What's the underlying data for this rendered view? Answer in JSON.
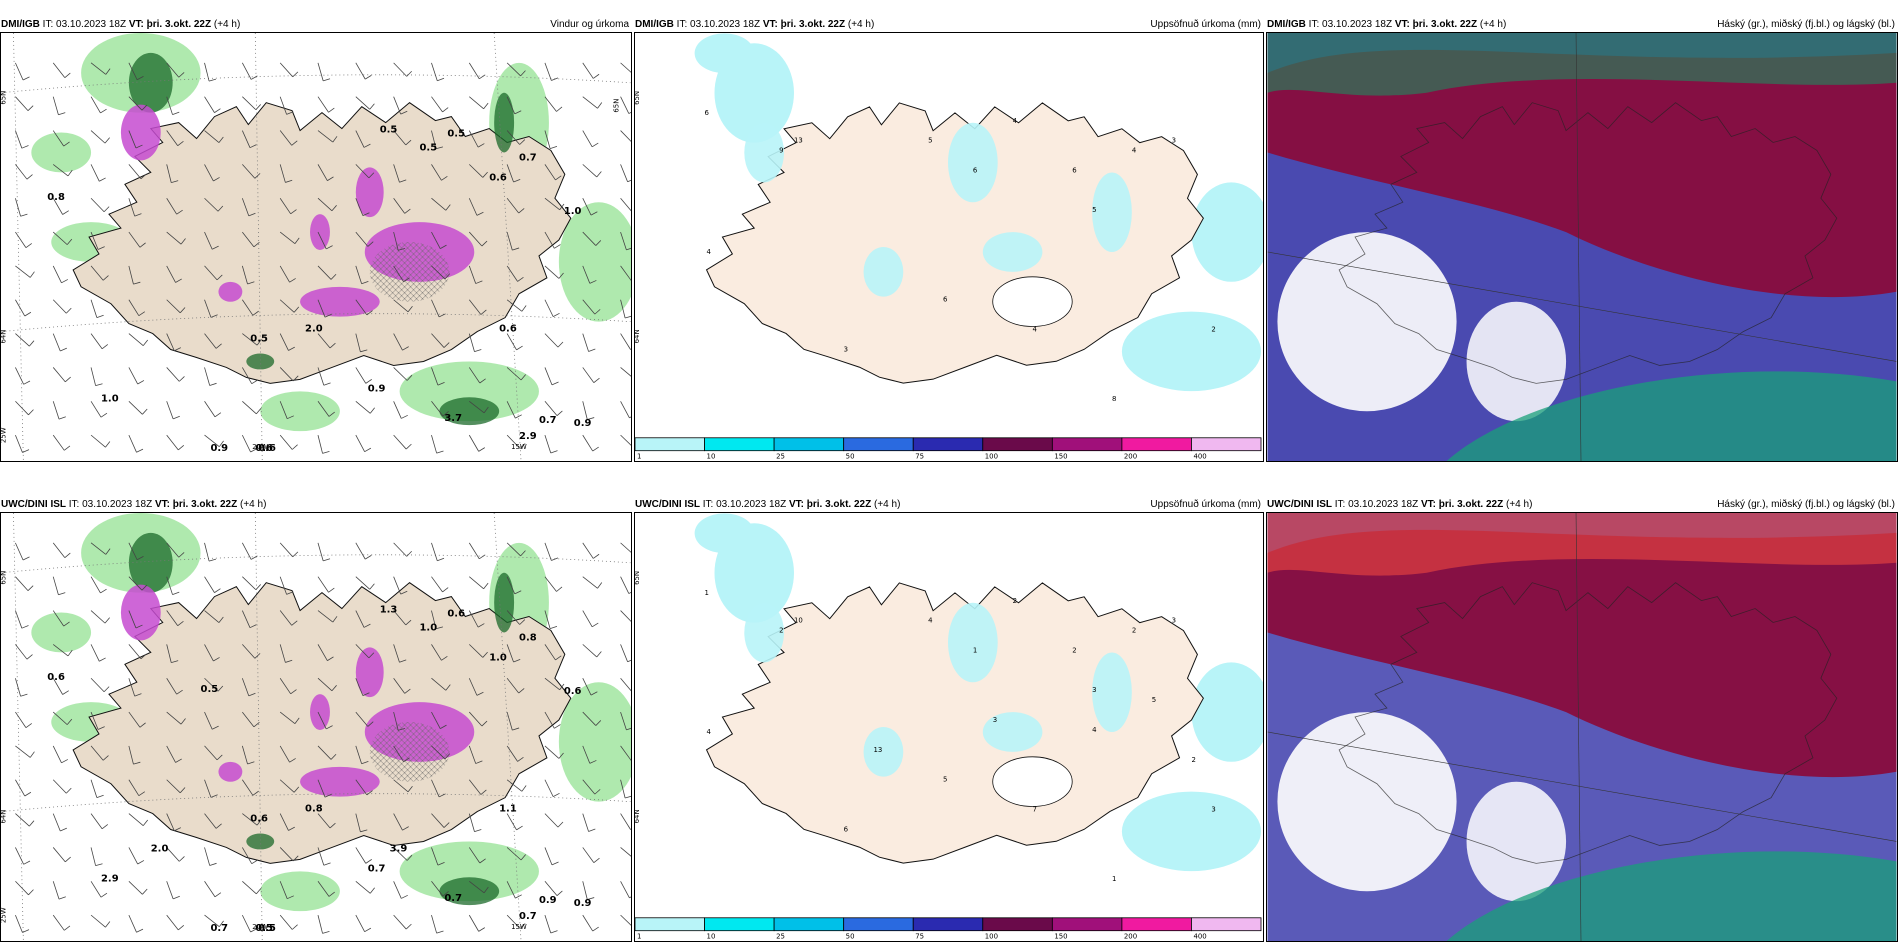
{
  "panels": {
    "dmi_wind": {
      "model": "DMI/IGB",
      "it_label": "IT:",
      "it_value": "03.10.2023 18Z",
      "vt_label": "VT:",
      "vt_value": "þri. 3.okt. 22Z",
      "lead": "(+4 h)",
      "title": "Vindur og úrkoma",
      "grid_labels": [
        "65N",
        "64N",
        "25W",
        "20W",
        "15W",
        "65N"
      ],
      "values": [
        "0.8",
        "0.6",
        "0.5",
        "0.7",
        "0.6",
        "0.5",
        "1.0",
        "0.9",
        "0.7",
        "0.5",
        "0.9",
        "3.7",
        "2.9",
        "0.6",
        "0.5",
        "2.0",
        "0.6",
        "0.9",
        "1.0"
      ]
    },
    "dmi_acc": {
      "model": "DMI/IGB",
      "it_label": "IT:",
      "it_value": "03.10.2023 18Z",
      "vt_label": "VT:",
      "vt_value": "þri. 3.okt. 22Z",
      "lead": "(+4 h)",
      "title": "Uppsöfnuð úrkoma (mm)",
      "grid_labels": [
        "65N",
        "64N"
      ],
      "values": [
        "6",
        "13",
        "5",
        "4",
        "6",
        "6",
        "5",
        "6",
        "4",
        "3",
        "4",
        "3",
        "4",
        "8",
        "2",
        "9"
      ]
    },
    "dmi_cloud": {
      "model": "DMI/IGB",
      "it_label": "IT:",
      "it_value": "03.10.2023 18Z",
      "vt_label": "VT:",
      "vt_value": "þri. 3.okt. 22Z",
      "lead": "(+4 h)",
      "title": "Háský (gr.), miðský (fj.bl.) og lágský (bl.)"
    },
    "uwc_wind": {
      "model": "UWC/DINI ISL",
      "it_label": "IT:",
      "it_value": "03.10.2023 18Z",
      "vt_label": "VT:",
      "vt_value": "þri. 3.okt. 22Z",
      "lead": "(+4 h)",
      "title": "",
      "grid_labels": [
        "65N",
        "64N",
        "25W",
        "20W",
        "15W"
      ],
      "values": [
        "0.6",
        "0.5",
        "1.0",
        "0.8",
        "1.0",
        "0.6",
        "0.6",
        "0.7",
        "0.9",
        "0.6",
        "0.9",
        "0.7",
        "0.7",
        "0.5",
        "1.3",
        "0.8",
        "1.1",
        "0.7",
        "2.9",
        "0.5",
        "3.9",
        "2.0"
      ]
    },
    "uwc_acc": {
      "model": "UWC/DINI ISL",
      "it_label": "IT:",
      "it_value": "03.10.2023 18Z",
      "vt_label": "VT:",
      "vt_value": "þri. 3.okt. 22Z",
      "lead": "(+4 h)",
      "title": "Uppsöfnuð úrkoma (mm)",
      "grid_labels": [
        "65N",
        "64N"
      ],
      "values": [
        "1",
        "10",
        "4",
        "2",
        "1",
        "2",
        "3",
        "5",
        "7",
        "3",
        "4",
        "6",
        "2",
        "1",
        "3",
        "2",
        "13",
        "3",
        "4",
        "5",
        "2"
      ]
    },
    "uwc_cloud": {
      "model": "UWC/DINI ISL",
      "it_label": "IT:",
      "it_value": "03.10.2023 18Z",
      "vt_label": "VT:",
      "vt_value": "þri. 3.okt. 22Z",
      "lead": "(+4 h)",
      "title": "Háský (gr.), miðský (fj.bl.) og lágský (bl.)"
    }
  },
  "colorbar": {
    "ticks": [
      "1",
      "10",
      "25",
      "50",
      "75",
      "100",
      "150",
      "200",
      "400"
    ],
    "colors": [
      "#b8f4f8",
      "#00e8f0",
      "#00c0e8",
      "#2a6ae0",
      "#2a2ab0",
      "#6a0a4a",
      "#a0107a",
      "#f01aa0",
      "#f0b8f0"
    ]
  }
}
